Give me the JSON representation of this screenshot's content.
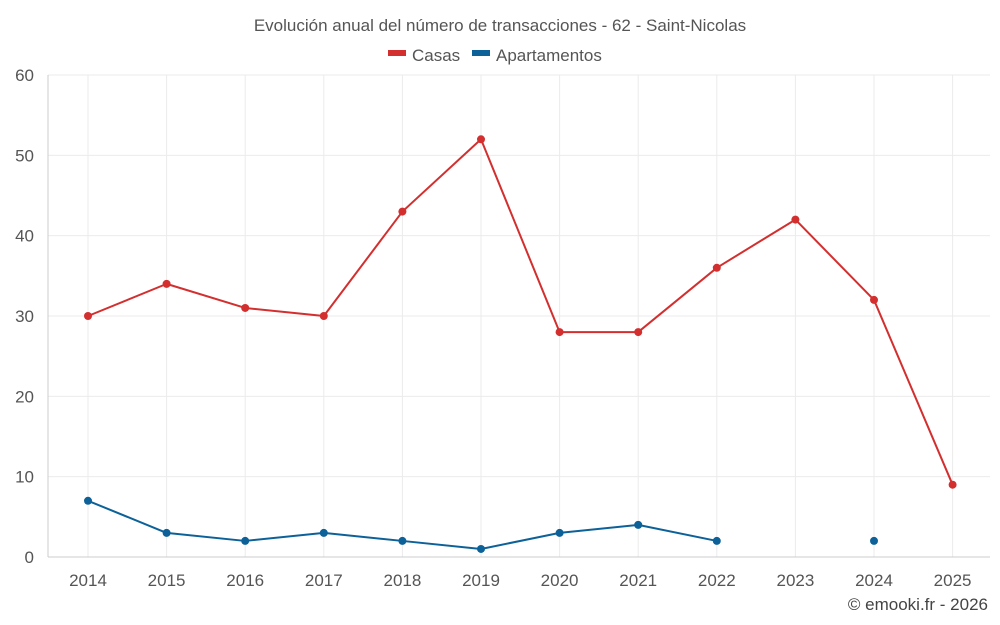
{
  "chart_data": {
    "type": "line",
    "title": "Evolución anual del número de transacciones - 62 - Saint-Nicolas",
    "x": [
      "2014",
      "2015",
      "2016",
      "2017",
      "2018",
      "2019",
      "2020",
      "2021",
      "2022",
      "2023",
      "2024",
      "2025"
    ],
    "ylim": [
      0,
      60
    ],
    "yticks": [
      0,
      10,
      20,
      30,
      40,
      50,
      60
    ],
    "grid": true,
    "legend_position": "top-center",
    "series": [
      {
        "name": "Casas",
        "color": "#d32f2f",
        "values": [
          30,
          34,
          31,
          30,
          43,
          52,
          28,
          28,
          36,
          42,
          32,
          9
        ]
      },
      {
        "name": "Apartamentos",
        "color": "#0d6199",
        "values": [
          7,
          3,
          2,
          3,
          2,
          1,
          3,
          4,
          2,
          null,
          2,
          null
        ]
      }
    ]
  },
  "credit": "© emooki.fr - 2026"
}
